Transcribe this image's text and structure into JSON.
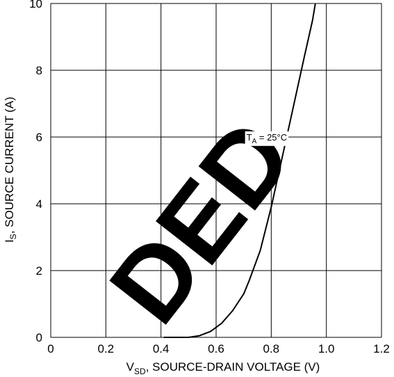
{
  "chart_data": {
    "type": "line",
    "title": "",
    "xlabel_main": "V",
    "xlabel_sub": "SD",
    "xlabel_rest": ", SOURCE-DRAIN VOLTAGE (V)",
    "ylabel_main": "I",
    "ylabel_sub": "S",
    "ylabel_rest": ", SOURCE CURRENT (A)",
    "xlim": [
      0,
      1.2
    ],
    "ylim": [
      0,
      10
    ],
    "x_ticks": [
      "0",
      "0.2",
      "0.4",
      "0.6",
      "0.8",
      "1.0",
      "1.2"
    ],
    "y_ticks": [
      "0",
      "2",
      "4",
      "6",
      "8",
      "10"
    ],
    "grid": true,
    "annotation": {
      "label_main": "T",
      "label_sub": "A",
      "label_rest": " = 25°C",
      "x": 0.71,
      "y": 5.9
    },
    "series": [
      {
        "x": [
          0.41,
          0.5,
          0.54,
          0.58,
          0.62,
          0.66,
          0.7,
          0.72,
          0.76,
          0.8,
          0.84,
          0.88,
          0.92,
          0.95,
          0.96
        ],
        "y": [
          0.0,
          0.0,
          0.05,
          0.18,
          0.42,
          0.8,
          1.3,
          1.7,
          2.6,
          3.9,
          5.4,
          6.9,
          8.4,
          9.5,
          10.0
        ]
      }
    ]
  },
  "watermark": {
    "text": "DED"
  },
  "colors": {
    "line": "#000000",
    "grid": "#000000",
    "watermark": "#000000"
  }
}
